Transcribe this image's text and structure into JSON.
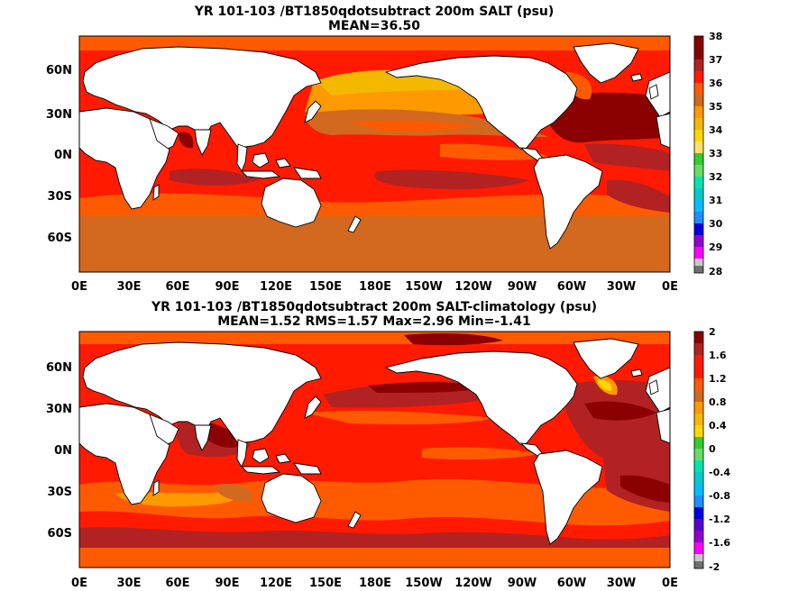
{
  "panels": [
    {
      "title": "YR 101-103 /BT1850qdotsubtract 200m SALT (psu)",
      "subtitle": "MEAN=36.50",
      "colorbar_labels": [
        "38",
        "37",
        "36",
        "35",
        "34",
        "33",
        "32",
        "31",
        "30",
        "29",
        "28"
      ]
    },
    {
      "title": "YR 101-103 /BT1850qdotsubtract 200m SALT-climatology (psu)",
      "subtitle": "MEAN=1.52   RMS=1.57   Max=2.96   Min=-1.41",
      "colorbar_labels": [
        "2",
        "1.6",
        "1.2",
        "0.8",
        "0.4",
        "0",
        "-0.4",
        "-0.8",
        "-1.2",
        "-1.6",
        "-2"
      ]
    }
  ],
  "lat_labels": [
    "60N",
    "30N",
    "0N",
    "30S",
    "60S"
  ],
  "lon_labels": [
    "0E",
    "30E",
    "60E",
    "90E",
    "120E",
    "150E",
    "180E",
    "150W",
    "120W",
    "90W",
    "60W",
    "30W",
    "0E"
  ],
  "colors": {
    "darkred": "#8b0000",
    "brickred": "#b22222",
    "red": "#ff1a00",
    "orangered": "#ff5a00",
    "ochre": "#d2691e",
    "orange": "#ff9900",
    "amber": "#f5b800",
    "yellow": "#ffd700",
    "green": "#33cc33",
    "aqua": "#00e5b0",
    "cyan": "#00cccc",
    "skyblue": "#1e90ff",
    "blue": "#0000e0",
    "purple": "#9400d3",
    "magenta": "#ff00ff",
    "lightgray": "#c8c8c8",
    "gray": "#707070"
  },
  "colorbar_colors": [
    "#8b0000",
    "#b22222",
    "#ff1a00",
    "#ff5a00",
    "#d2691e",
    "#ff9900",
    "#f5b800",
    "#ffd700",
    "#33cc33",
    "#00e5b0",
    "#00cccc",
    "#1e90ff",
    "#0000e0",
    "#9400d3",
    "#ff00ff",
    "#c8c8c8",
    "#707070"
  ]
}
